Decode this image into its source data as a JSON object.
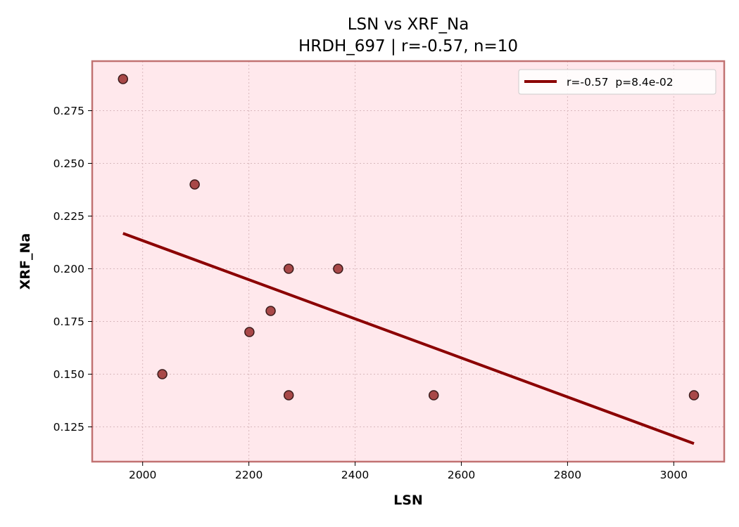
{
  "chart_data": {
    "type": "scatter",
    "title": "LSN vs XRF_Na",
    "subtitle": "HRDH_697 | r=-0.57, n=10",
    "xlabel": "LSN",
    "ylabel": "XRF_Na",
    "xlim": [
      1905,
      3095
    ],
    "ylim": [
      0.1085,
      0.2985
    ],
    "xticks": [
      2000,
      2200,
      2400,
      2600,
      2800,
      3000
    ],
    "xtick_labels": [
      "2000",
      "2200",
      "2400",
      "2600",
      "2800",
      "3000"
    ],
    "yticks": [
      0.125,
      0.15,
      0.175,
      0.2,
      0.225,
      0.25,
      0.275
    ],
    "ytick_labels": [
      "0.125",
      "0.150",
      "0.175",
      "0.200",
      "0.225",
      "0.250",
      "0.275"
    ],
    "grid": true,
    "legend_position": "top-right",
    "legend": [
      "r=-0.57  p=8.4e-02"
    ],
    "points": [
      {
        "x": 1963,
        "y": 0.29
      },
      {
        "x": 2037,
        "y": 0.15
      },
      {
        "x": 2098,
        "y": 0.24
      },
      {
        "x": 2201,
        "y": 0.17
      },
      {
        "x": 2241,
        "y": 0.18
      },
      {
        "x": 2275,
        "y": 0.2
      },
      {
        "x": 2275,
        "y": 0.14
      },
      {
        "x": 2368,
        "y": 0.2
      },
      {
        "x": 2548,
        "y": 0.14
      },
      {
        "x": 3038,
        "y": 0.14
      }
    ],
    "fit_line": {
      "x": [
        1963,
        3038
      ],
      "y": [
        0.2168,
        0.1171
      ]
    },
    "colors": {
      "plot_background": "#ffe8ec",
      "frame": "#c17272",
      "marker_fill": "#a84848",
      "marker_edge": "#3a1a1a",
      "fit_line": "#8b0000"
    }
  }
}
